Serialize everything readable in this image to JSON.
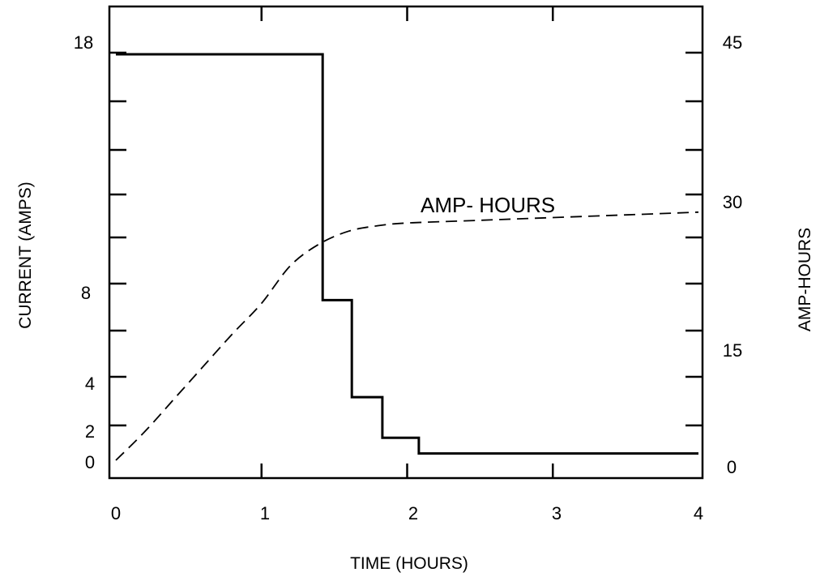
{
  "chart_data": {
    "type": "line",
    "xlabel": "TIME (HOURS)",
    "ylabel_left": "CURRENT (AMPS)",
    "ylabel_right": "AMP-HOURS",
    "annotation": "AMP- HOURS",
    "xlim": [
      0,
      4
    ],
    "ylim_left": [
      0,
      18
    ],
    "ylim_right": [
      0,
      45
    ],
    "x_ticks": [
      "0",
      "1",
      "2",
      "3",
      "4"
    ],
    "y_left_ticks": [
      "0",
      "2",
      "4",
      "8",
      "18"
    ],
    "y_right_ticks": [
      "0",
      "15",
      "30",
      "45"
    ],
    "grid": false,
    "series": [
      {
        "axis": "left",
        "style": "solid-step",
        "x": [
          0,
          1.42,
          1.42,
          1.62,
          1.62,
          1.83,
          1.83,
          2.08,
          2.08,
          4.0
        ],
        "y": [
          18,
          18,
          7.1,
          7.1,
          2.8,
          2.8,
          1.0,
          1.0,
          0.3,
          0.3
        ]
      },
      {
        "axis": "right",
        "name": "AMP- HOURS",
        "style": "dashed",
        "x": [
          0,
          0.2,
          0.4,
          0.6,
          0.8,
          1.0,
          1.2,
          1.4,
          1.6,
          1.8,
          2.0,
          2.5,
          3.0,
          3.5,
          4.0
        ],
        "y": [
          0,
          3.2,
          6.8,
          10.4,
          14.0,
          17.4,
          21.6,
          24.0,
          25.4,
          26.0,
          26.3,
          26.6,
          26.9,
          27.2,
          27.5
        ]
      }
    ]
  }
}
